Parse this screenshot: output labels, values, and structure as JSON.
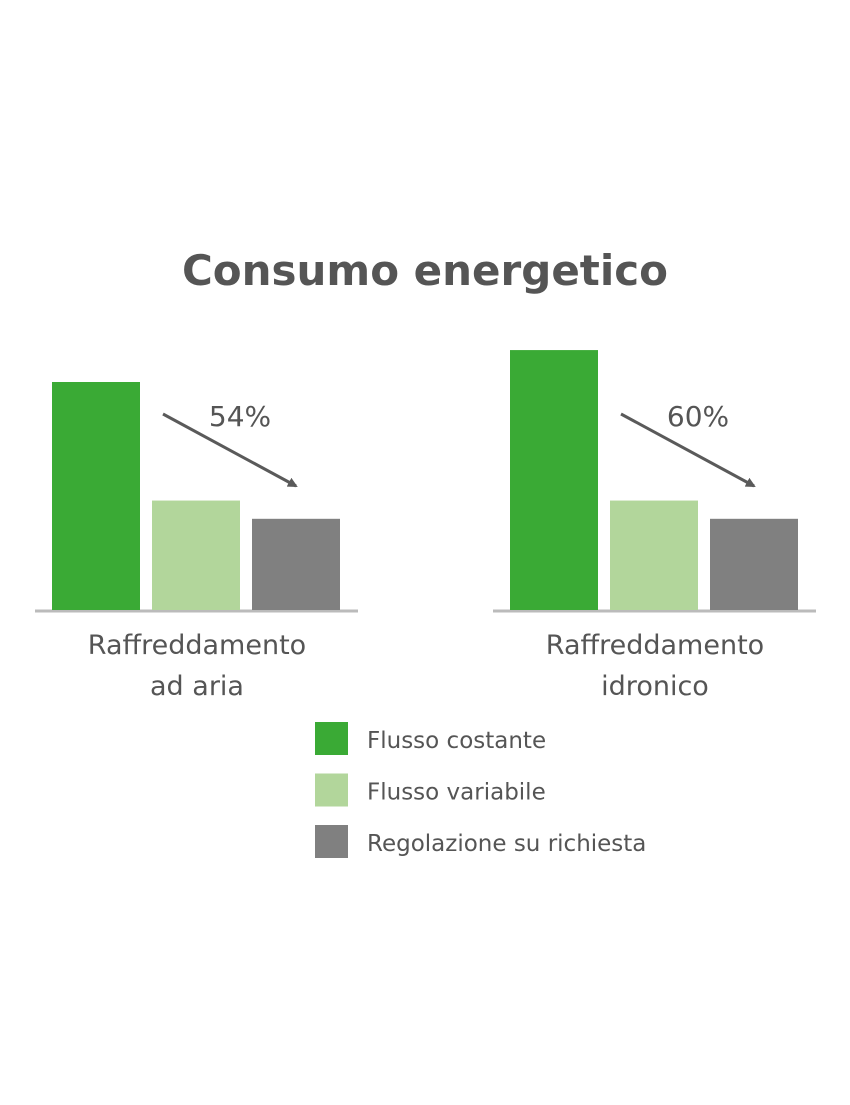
{
  "chart_data": {
    "type": "bar",
    "title": "Consumo energetico",
    "categories": [
      "Raffreddamento\nad aria",
      "Raffreddamento\nidronico"
    ],
    "category_lines": [
      [
        "Raffreddamento",
        "ad aria"
      ],
      [
        "Raffreddamento",
        "idronico"
      ]
    ],
    "series": [
      {
        "name": "Flusso costante",
        "color": "#3aaa35",
        "values": [
          100,
          114
        ]
      },
      {
        "name": "Flusso variabile",
        "color": "#b2d69b",
        "values": [
          48,
          48
        ]
      },
      {
        "name": "Regolazione su richiesta",
        "color": "#808080",
        "values": [
          40,
          40
        ]
      }
    ],
    "annotations": [
      "54%",
      "60%"
    ],
    "value_units": "relative (no axis shown)",
    "grid": false,
    "legend": "bottom",
    "axis_color": "#bbbbbb",
    "text_color": "#555555"
  }
}
